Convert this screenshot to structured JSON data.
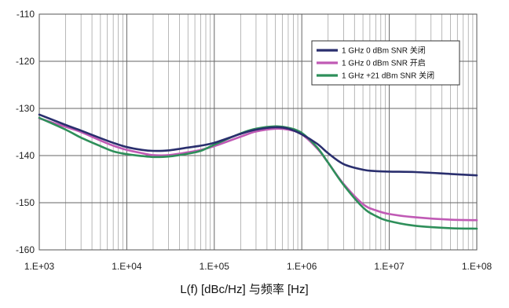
{
  "chart_data": {
    "type": "line",
    "title": "",
    "xlabel": "L(f) [dBc/Hz] 与频率 [Hz]",
    "ylabel": "",
    "x_scale": "log",
    "xlim": [
      1000,
      100000000
    ],
    "ylim": [
      -160,
      -110
    ],
    "x_ticks": [
      1000,
      10000,
      100000,
      1000000,
      10000000,
      100000000
    ],
    "x_tick_labels": [
      "1.E+03",
      "1.E+04",
      "1.E+05",
      "1.E+06",
      "1.E+07",
      "1.E+08"
    ],
    "y_ticks": [
      -110,
      -120,
      -130,
      -140,
      -150,
      -160
    ],
    "y_tick_labels": [
      "-110",
      "-120",
      "-130",
      "-140",
      "-150",
      "-160"
    ],
    "grid": true,
    "legend_position": "top-right",
    "series": [
      {
        "name": "1 GHz 0 dBm SNR 关闭",
        "color": "#2a2f6e",
        "x": [
          1000,
          2000,
          3000,
          5000,
          7000,
          10000,
          15000,
          20000,
          30000,
          50000,
          70000,
          100000,
          200000,
          300000,
          500000,
          700000,
          1000000,
          1500000,
          2000000,
          3000000,
          5000000,
          7000000,
          10000000,
          20000000,
          50000000,
          100000000
        ],
        "y": [
          -131.3,
          -133.5,
          -134.7,
          -136.3,
          -137.3,
          -138.2,
          -138.8,
          -139.0,
          -138.9,
          -138.3,
          -137.9,
          -137.3,
          -135.4,
          -134.5,
          -134.0,
          -134.3,
          -135.5,
          -137.5,
          -139.5,
          -141.8,
          -143.0,
          -143.3,
          -143.4,
          -143.5,
          -143.9,
          -144.2
        ]
      },
      {
        "name": "1 GHz 0 dBm SNR 开启",
        "color": "#c05ab5",
        "x": [
          1000,
          2000,
          3000,
          5000,
          7000,
          10000,
          15000,
          20000,
          30000,
          50000,
          70000,
          100000,
          200000,
          300000,
          500000,
          700000,
          1000000,
          1500000,
          2000000,
          3000000,
          5000000,
          7000000,
          10000000,
          20000000,
          50000000,
          100000000
        ],
        "y": [
          -132.1,
          -133.9,
          -135.0,
          -136.8,
          -137.9,
          -138.8,
          -139.5,
          -139.9,
          -139.9,
          -139.3,
          -138.8,
          -138.0,
          -136.0,
          -134.9,
          -134.3,
          -134.5,
          -135.5,
          -138.5,
          -141.5,
          -146.0,
          -150.3,
          -151.6,
          -152.4,
          -153.1,
          -153.6,
          -153.7
        ]
      },
      {
        "name": "1 GHz +21 dBm SNR 关闭",
        "color": "#2e8f5a",
        "x": [
          1000,
          2000,
          3000,
          5000,
          7000,
          10000,
          15000,
          20000,
          30000,
          50000,
          70000,
          100000,
          200000,
          300000,
          500000,
          700000,
          1000000,
          1500000,
          2000000,
          3000000,
          5000000,
          7000000,
          10000000,
          20000000,
          50000000,
          100000000
        ],
        "y": [
          -132.0,
          -134.5,
          -136.2,
          -138.0,
          -139.1,
          -139.7,
          -140.1,
          -140.3,
          -140.2,
          -139.6,
          -139.0,
          -137.7,
          -135.3,
          -134.3,
          -133.8,
          -134.1,
          -135.2,
          -138.3,
          -141.5,
          -146.2,
          -151.0,
          -152.8,
          -153.9,
          -154.9,
          -155.4,
          -155.5
        ]
      }
    ]
  }
}
